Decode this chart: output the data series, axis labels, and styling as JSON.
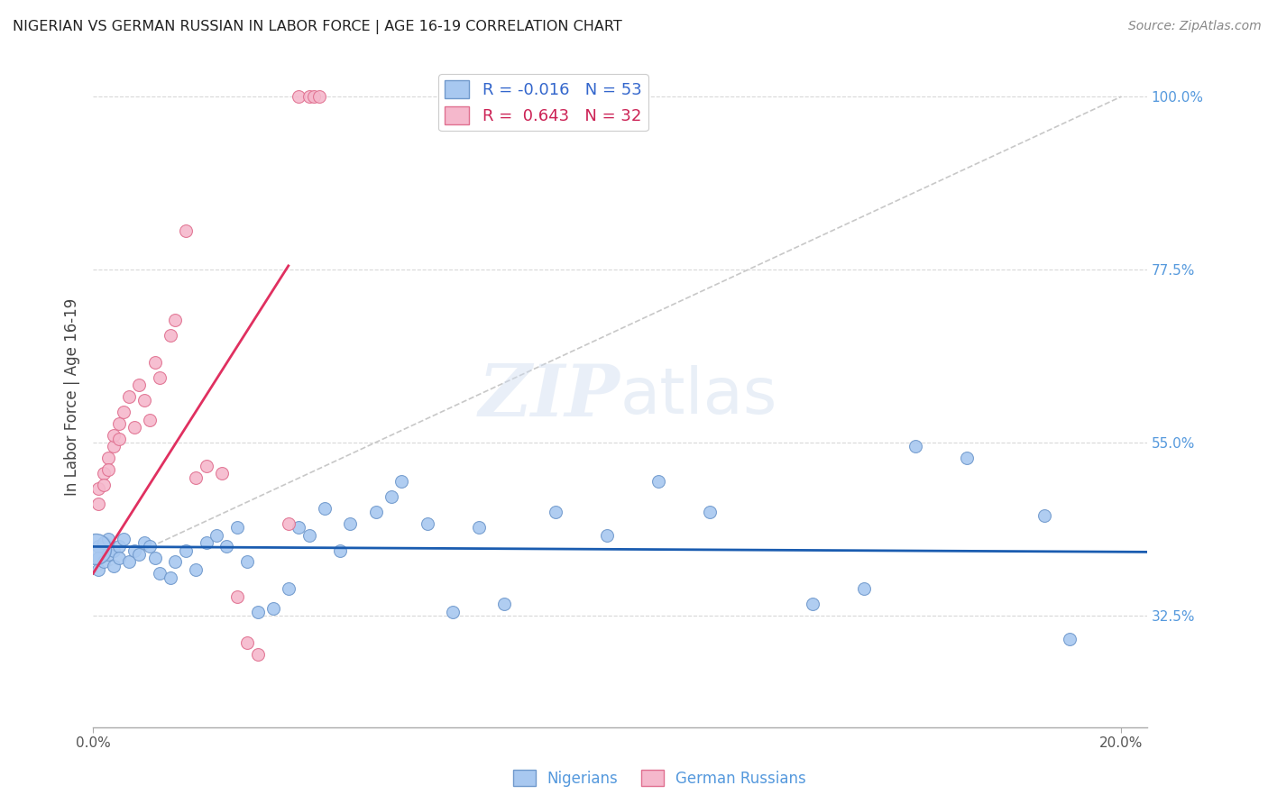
{
  "title": "NIGERIAN VS GERMAN RUSSIAN IN LABOR FORCE | AGE 16-19 CORRELATION CHART",
  "source": "Source: ZipAtlas.com",
  "ylabel": "In Labor Force | Age 16-19",
  "xlim": [
    0.0,
    0.205
  ],
  "ylim": [
    0.18,
    1.04
  ],
  "xtick_positions": [
    0.0,
    0.2
  ],
  "xticklabels": [
    "0.0%",
    "20.0%"
  ],
  "yticks_right": [
    1.0,
    0.775,
    0.55,
    0.325
  ],
  "yticklabels_right": [
    "100.0%",
    "77.5%",
    "55.0%",
    "32.5%"
  ],
  "watermark": "ZIPatlas",
  "legend_blue_r": "-0.016",
  "legend_blue_n": "53",
  "legend_pink_r": "0.643",
  "legend_pink_n": "32",
  "blue_color": "#a8c8f0",
  "pink_color": "#f5b8cc",
  "blue_edge": "#7099cc",
  "pink_edge": "#e07090",
  "trend_blue_color": "#1a5cb0",
  "trend_pink_color": "#e03060",
  "diag_color": "#c8c8c8",
  "grid_color": "#d8d8d8",
  "blue_x": [
    0.001,
    0.001,
    0.001,
    0.002,
    0.002,
    0.003,
    0.003,
    0.004,
    0.004,
    0.005,
    0.005,
    0.006,
    0.007,
    0.008,
    0.009,
    0.01,
    0.011,
    0.012,
    0.013,
    0.015,
    0.016,
    0.018,
    0.02,
    0.022,
    0.024,
    0.026,
    0.028,
    0.03,
    0.032,
    0.035,
    0.038,
    0.04,
    0.042,
    0.045,
    0.048,
    0.05,
    0.055,
    0.058,
    0.06,
    0.065,
    0.07,
    0.075,
    0.08,
    0.09,
    0.1,
    0.11,
    0.12,
    0.14,
    0.15,
    0.16,
    0.17,
    0.185,
    0.19
  ],
  "blue_y": [
    0.415,
    0.4,
    0.385,
    0.42,
    0.395,
    0.425,
    0.405,
    0.41,
    0.39,
    0.415,
    0.4,
    0.425,
    0.395,
    0.41,
    0.405,
    0.42,
    0.415,
    0.4,
    0.38,
    0.375,
    0.395,
    0.41,
    0.385,
    0.42,
    0.43,
    0.415,
    0.44,
    0.395,
    0.33,
    0.335,
    0.36,
    0.44,
    0.43,
    0.465,
    0.41,
    0.445,
    0.46,
    0.48,
    0.5,
    0.445,
    0.33,
    0.44,
    0.34,
    0.46,
    0.43,
    0.5,
    0.46,
    0.34,
    0.36,
    0.545,
    0.53,
    0.455,
    0.295
  ],
  "pink_x": [
    0.001,
    0.001,
    0.002,
    0.002,
    0.003,
    0.003,
    0.004,
    0.004,
    0.005,
    0.005,
    0.006,
    0.007,
    0.008,
    0.009,
    0.01,
    0.011,
    0.012,
    0.013,
    0.015,
    0.016,
    0.018,
    0.02,
    0.022,
    0.025,
    0.028,
    0.03,
    0.032,
    0.038,
    0.04,
    0.042,
    0.043,
    0.044
  ],
  "pink_y": [
    0.49,
    0.47,
    0.51,
    0.495,
    0.53,
    0.515,
    0.545,
    0.56,
    0.575,
    0.555,
    0.59,
    0.61,
    0.57,
    0.625,
    0.605,
    0.58,
    0.655,
    0.635,
    0.69,
    0.71,
    0.825,
    0.505,
    0.52,
    0.51,
    0.35,
    0.29,
    0.275,
    0.445,
    1.0,
    1.0,
    1.0,
    1.0
  ],
  "pink_trend_x": [
    0.0,
    0.038
  ],
  "pink_trend_y": [
    0.38,
    0.78
  ],
  "blue_trend_x": [
    0.0,
    0.205
  ],
  "blue_trend_y": [
    0.415,
    0.408
  ]
}
